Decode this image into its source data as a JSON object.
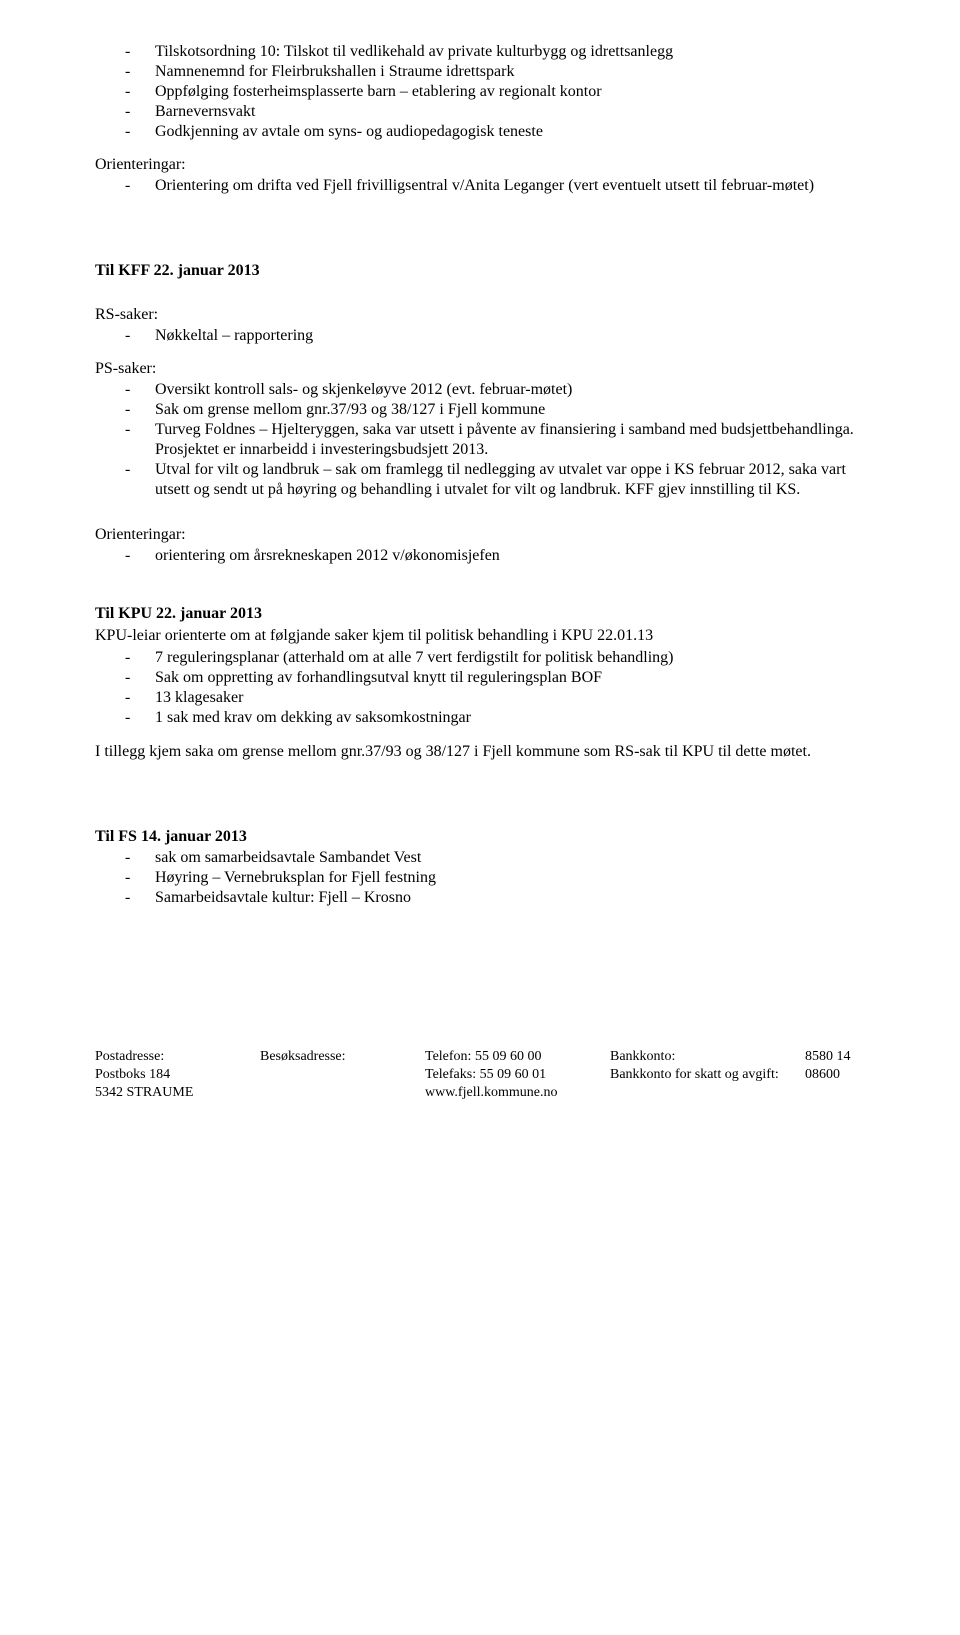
{
  "top_list": [
    "Tilskotsordning 10: Tilskot til vedlikehald av private kulturbygg og idrettsanlegg",
    "Namnenemnd for Fleirbrukshallen i Straume idrettspark",
    "Oppfølging fosterheimsplasserte barn – etablering av regionalt kontor",
    "Barnevernsvakt",
    "Godkjenning av avtale om syns- og audiopedagogisk teneste"
  ],
  "orienteringar_label": "Orienteringar:",
  "orienteringar_1": [
    "Orientering om drifta ved Fjell frivilligsentral v/Anita Leganger (vert eventuelt utsett til februar-møtet)"
  ],
  "kff_title": "Til KFF  22. januar 2013",
  "rs_label": "RS-saker:",
  "rs_list": [
    "Nøkkeltal – rapportering"
  ],
  "ps_label": "PS-saker:",
  "ps_list": [
    "Oversikt kontroll sals- og skjenkeløyve 2012 (evt. februar-møtet)",
    "Sak om grense mellom gnr.37/93 og 38/127 i Fjell kommune",
    "Turveg Foldnes – Hjelteryggen, saka var utsett i påvente av finansiering i samband med budsjettbehandlinga. Prosjektet er innarbeidd i investeringsbudsjett 2013.",
    "Utval for vilt og landbruk – sak om framlegg til nedlegging av utvalet var oppe i KS februar 2012, saka vart utsett og sendt ut på høyring og behandling i utvalet for vilt og landbruk. KFF gjev innstilling til KS."
  ],
  "orienteringar_2": [
    "orientering om årsrekneskapen 2012 v/økonomisjefen"
  ],
  "kpu_title": "Til KPU 22. januar 2013",
  "kpu_intro": "KPU-leiar orienterte om at følgjande saker kjem til politisk behandling i KPU 22.01.13",
  "kpu_list": [
    "7 reguleringsplanar (atterhald om at alle 7 vert ferdigstilt for politisk behandling)",
    "Sak om oppretting av forhandlingsutval knytt til reguleringsplan BOF",
    "13 klagesaker",
    "1 sak med krav om dekking av saksomkostningar"
  ],
  "kpu_tail": "I tillegg kjem saka om grense mellom gnr.37/93 og 38/127 i Fjell kommune som RS-sak til KPU til dette møtet.",
  "fs_title": "Til FS 14. januar 2013",
  "fs_list": [
    "sak om samarbeidsavtale Sambandet Vest",
    "Høyring – Vernebruksplan for Fjell festning",
    "Samarbeidsavtale kultur: Fjell – Krosno"
  ],
  "footer": {
    "col1": {
      "h": "Postadresse:",
      "l1": "Postboks 184",
      "l2": "5342 STRAUME"
    },
    "col2": {
      "h": "Besøksadresse:"
    },
    "col3": {
      "l1": "Telefon:   55 09 60 00",
      "l2": "Telefaks:  55 09 60 01",
      "l3": "www.fjell.kommune.no"
    },
    "col4": {
      "l1": "Bankkonto:",
      "l2": "Bankkonto for skatt og avgift:"
    },
    "col5": {
      "l1": "8580 14 08600"
    }
  }
}
